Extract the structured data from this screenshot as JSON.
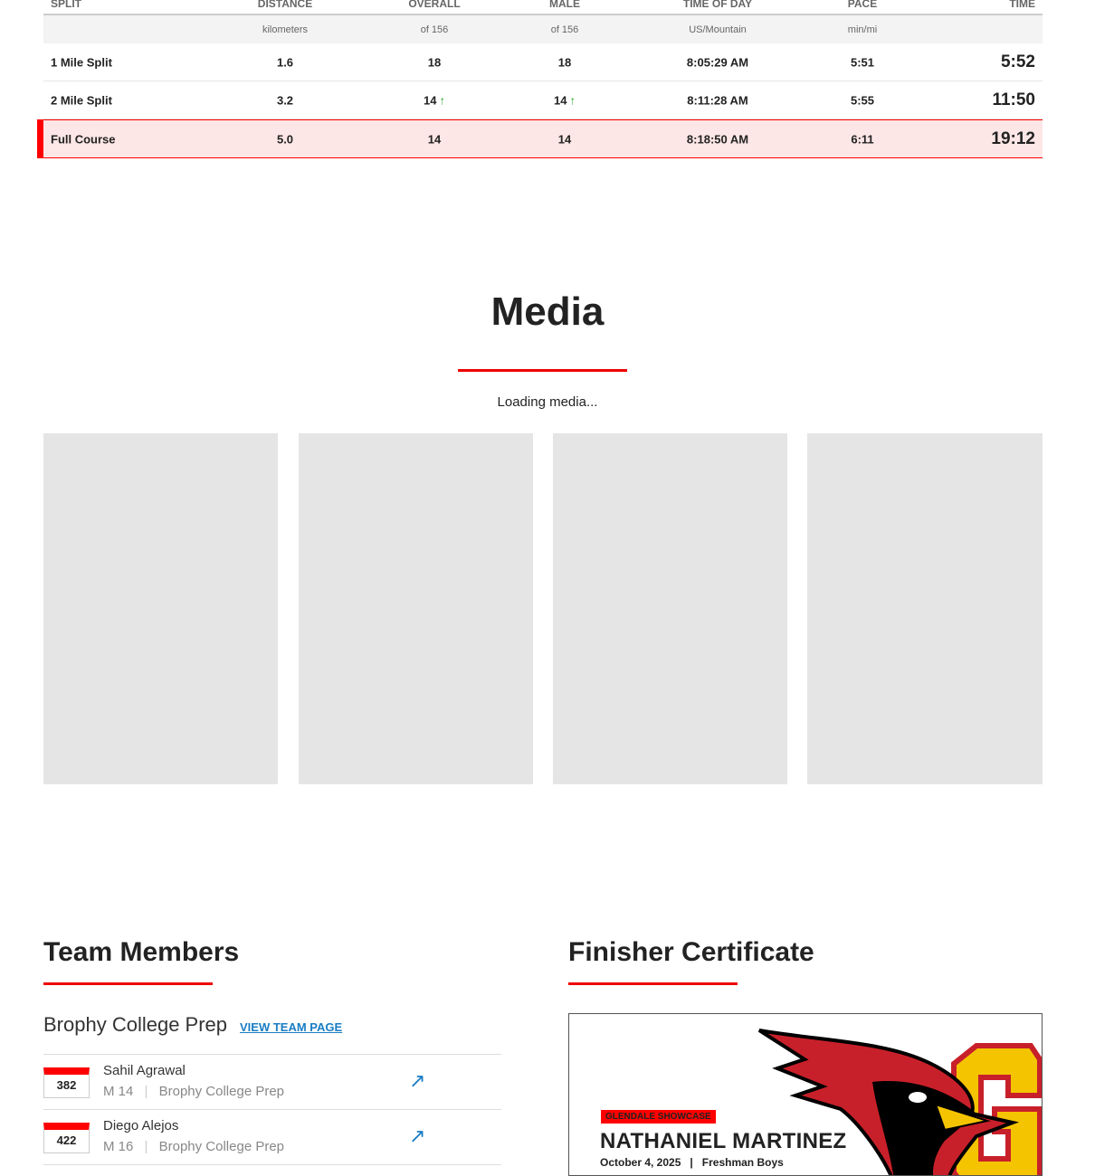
{
  "splits": {
    "headers": [
      "SPLIT",
      "DISTANCE",
      "OVERALL",
      "MALE",
      "TIME OF DAY",
      "PACE",
      "TIME"
    ],
    "subheaders": [
      "",
      "kilometers",
      "of 156",
      "of 156",
      "US/Mountain",
      "min/mi",
      ""
    ],
    "rows": [
      {
        "split": "1 Mile Split",
        "distance": "1.6",
        "overall": "18",
        "male": "18",
        "time_of_day": "8:05:29 AM",
        "pace": "5:51",
        "time": "5:52",
        "overall_up": "",
        "male_up": ""
      },
      {
        "split": "2 Mile Split",
        "distance": "3.2",
        "overall": "14",
        "male": "14",
        "time_of_day": "8:11:28 AM",
        "pace": "5:55",
        "time": "11:50",
        "overall_up": "↑",
        "male_up": "↑"
      },
      {
        "split": "Full Course",
        "distance": "5.0",
        "overall": "14",
        "male": "14",
        "time_of_day": "8:18:50 AM",
        "pace": "6:11",
        "time": "19:12",
        "overall_up": "",
        "male_up": ""
      }
    ]
  },
  "media": {
    "title": "Media",
    "loading": "Loading media..."
  },
  "team": {
    "title": "Team Members",
    "team_name": "Brophy College Prep",
    "view_team_page": "VIEW TEAM PAGE",
    "members": [
      {
        "bib": "382",
        "name": "Sahil Agrawal",
        "info": "M 14",
        "team": "Brophy College Prep"
      },
      {
        "bib": "422",
        "name": "Diego Alejos",
        "info": "M 16",
        "team": "Brophy College Prep"
      }
    ]
  },
  "certificate": {
    "title": "Finisher Certificate",
    "event": "GLENDALE SHOWCASE",
    "name": "NATHANIEL MARTINEZ",
    "date": "October 4, 2025",
    "division": "Freshman Boys",
    "logo_letter": "G"
  },
  "colors": {
    "accent": "#ff0000",
    "link": "#1a7dc4",
    "highlight": "#fde6e6"
  }
}
